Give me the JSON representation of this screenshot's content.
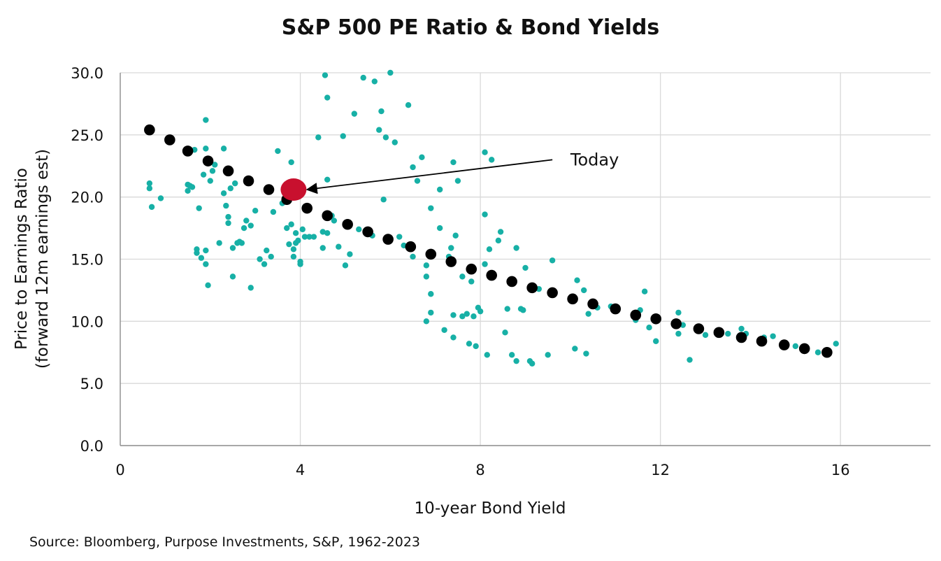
{
  "chart_data": {
    "type": "scatter",
    "title": "S&P 500 PE Ratio & Bond Yields",
    "xlabel": "10-year Bond Yield",
    "ylabel_line1": "Price to Earnings Ratio",
    "ylabel_line2": "(forward 12m earnings est)",
    "xlim": [
      0,
      18
    ],
    "ylim": [
      0,
      30
    ],
    "x_ticks": [
      0,
      4,
      8,
      12,
      16
    ],
    "y_ticks": [
      "0.0",
      "5.0",
      "10.0",
      "15.0",
      "20.0",
      "25.0",
      "30.0"
    ],
    "grid": true,
    "colors": {
      "observations": "#17b0a6",
      "trend": "#000000",
      "today": "#c8102e",
      "grid": "#d9d9d9",
      "axis": "#8c8c8c"
    },
    "series": [
      {
        "role": "observations",
        "points": [
          [
            0.65,
            20.7
          ],
          [
            0.65,
            21.1
          ],
          [
            0.7,
            19.2
          ],
          [
            0.9,
            19.9
          ],
          [
            1.5,
            21.0
          ],
          [
            1.5,
            20.5
          ],
          [
            1.55,
            20.9
          ],
          [
            1.6,
            20.8
          ],
          [
            1.65,
            23.8
          ],
          [
            1.7,
            15.8
          ],
          [
            1.7,
            15.5
          ],
          [
            1.75,
            19.1
          ],
          [
            1.8,
            15.1
          ],
          [
            1.85,
            21.8
          ],
          [
            1.9,
            26.2
          ],
          [
            1.9,
            23.9
          ],
          [
            1.9,
            14.6
          ],
          [
            1.9,
            15.7
          ],
          [
            1.95,
            12.9
          ],
          [
            2.0,
            21.3
          ],
          [
            2.05,
            22.1
          ],
          [
            2.1,
            22.6
          ],
          [
            2.2,
            16.3
          ],
          [
            2.3,
            23.9
          ],
          [
            2.3,
            20.3
          ],
          [
            2.35,
            19.3
          ],
          [
            2.4,
            18.4
          ],
          [
            2.4,
            17.9
          ],
          [
            2.45,
            20.7
          ],
          [
            2.5,
            13.6
          ],
          [
            2.5,
            15.9
          ],
          [
            2.55,
            21.1
          ],
          [
            2.6,
            16.3
          ],
          [
            2.65,
            16.4
          ],
          [
            2.7,
            16.3
          ],
          [
            2.75,
            17.5
          ],
          [
            2.8,
            18.1
          ],
          [
            2.9,
            12.7
          ],
          [
            2.9,
            17.7
          ],
          [
            3.0,
            18.9
          ],
          [
            3.1,
            15.0
          ],
          [
            3.2,
            14.6
          ],
          [
            3.25,
            15.7
          ],
          [
            3.35,
            15.2
          ],
          [
            3.4,
            18.8
          ],
          [
            3.5,
            23.7
          ],
          [
            3.6,
            19.5
          ],
          [
            3.7,
            17.5
          ],
          [
            3.75,
            16.2
          ],
          [
            3.8,
            22.8
          ],
          [
            3.8,
            17.8
          ],
          [
            3.85,
            15.2
          ],
          [
            3.85,
            15.8
          ],
          [
            3.9,
            16.3
          ],
          [
            3.9,
            17.1
          ],
          [
            3.95,
            16.5
          ],
          [
            4.0,
            14.6
          ],
          [
            4.0,
            14.8
          ],
          [
            4.05,
            17.4
          ],
          [
            4.1,
            16.8
          ],
          [
            4.1,
            19.2
          ],
          [
            4.2,
            16.8
          ],
          [
            4.3,
            16.8
          ],
          [
            4.4,
            24.8
          ],
          [
            4.5,
            15.9
          ],
          [
            4.5,
            17.2
          ],
          [
            4.55,
            29.8
          ],
          [
            4.6,
            17.1
          ],
          [
            4.6,
            21.4
          ],
          [
            4.6,
            28.0
          ],
          [
            4.7,
            18.5
          ],
          [
            4.75,
            18.1
          ],
          [
            4.85,
            16.0
          ],
          [
            4.95,
            24.9
          ],
          [
            5.0,
            14.5
          ],
          [
            5.05,
            17.8
          ],
          [
            5.1,
            15.4
          ],
          [
            5.2,
            26.7
          ],
          [
            5.3,
            17.4
          ],
          [
            5.4,
            29.6
          ],
          [
            5.5,
            17.1
          ],
          [
            5.6,
            16.9
          ],
          [
            5.65,
            29.3
          ],
          [
            5.75,
            25.4
          ],
          [
            5.8,
            26.9
          ],
          [
            5.85,
            19.8
          ],
          [
            5.9,
            24.8
          ],
          [
            6.0,
            30.0
          ],
          [
            6.1,
            24.4
          ],
          [
            6.2,
            16.8
          ],
          [
            6.3,
            16.1
          ],
          [
            6.4,
            27.4
          ],
          [
            6.5,
            22.4
          ],
          [
            6.5,
            15.2
          ],
          [
            6.6,
            21.3
          ],
          [
            6.7,
            23.2
          ],
          [
            6.8,
            10.0
          ],
          [
            6.8,
            13.6
          ],
          [
            6.8,
            14.5
          ],
          [
            6.9,
            12.2
          ],
          [
            6.9,
            10.7
          ],
          [
            6.9,
            19.1
          ],
          [
            7.1,
            17.5
          ],
          [
            7.1,
            20.6
          ],
          [
            7.2,
            9.3
          ],
          [
            7.3,
            15.2
          ],
          [
            7.3,
            14.8
          ],
          [
            7.35,
            15.9
          ],
          [
            7.4,
            8.7
          ],
          [
            7.4,
            10.5
          ],
          [
            7.4,
            22.8
          ],
          [
            7.45,
            16.9
          ],
          [
            7.5,
            21.3
          ],
          [
            7.6,
            10.4
          ],
          [
            7.6,
            13.6
          ],
          [
            7.7,
            10.6
          ],
          [
            7.75,
            8.2
          ],
          [
            7.8,
            13.2
          ],
          [
            7.85,
            10.4
          ],
          [
            7.9,
            8.0
          ],
          [
            7.95,
            11.1
          ],
          [
            8.0,
            10.8
          ],
          [
            8.1,
            23.6
          ],
          [
            8.1,
            18.6
          ],
          [
            8.1,
            14.6
          ],
          [
            8.15,
            7.3
          ],
          [
            8.2,
            15.8
          ],
          [
            8.25,
            23.0
          ],
          [
            8.4,
            16.5
          ],
          [
            8.45,
            17.2
          ],
          [
            8.55,
            9.1
          ],
          [
            8.6,
            11.0
          ],
          [
            8.7,
            7.3
          ],
          [
            8.8,
            15.9
          ],
          [
            8.8,
            6.8
          ],
          [
            8.9,
            11.0
          ],
          [
            8.95,
            10.9
          ],
          [
            9.0,
            14.3
          ],
          [
            9.1,
            6.8
          ],
          [
            9.15,
            6.6
          ],
          [
            9.3,
            12.6
          ],
          [
            9.5,
            7.3
          ],
          [
            9.6,
            14.9
          ],
          [
            10.1,
            7.8
          ],
          [
            10.15,
            13.3
          ],
          [
            10.3,
            12.5
          ],
          [
            10.35,
            7.4
          ],
          [
            10.4,
            10.6
          ],
          [
            10.6,
            11.1
          ],
          [
            10.9,
            11.2
          ],
          [
            11.45,
            10.1
          ],
          [
            11.55,
            10.9
          ],
          [
            11.65,
            12.4
          ],
          [
            11.75,
            9.5
          ],
          [
            11.9,
            8.4
          ],
          [
            12.4,
            10.7
          ],
          [
            12.4,
            9.0
          ],
          [
            12.5,
            9.7
          ],
          [
            12.65,
            6.9
          ],
          [
            13.0,
            8.9
          ],
          [
            13.5,
            9.0
          ],
          [
            13.8,
            9.4
          ],
          [
            13.9,
            9.0
          ],
          [
            14.3,
            8.7
          ],
          [
            14.5,
            8.8
          ],
          [
            15.0,
            8.0
          ],
          [
            15.5,
            7.5
          ],
          [
            15.9,
            8.2
          ]
        ]
      },
      {
        "role": "trend",
        "points": [
          [
            0.65,
            25.4
          ],
          [
            1.1,
            24.6
          ],
          [
            1.5,
            23.7
          ],
          [
            1.95,
            22.9
          ],
          [
            2.4,
            22.1
          ],
          [
            2.85,
            21.3
          ],
          [
            3.3,
            20.6
          ],
          [
            3.7,
            19.8
          ],
          [
            4.15,
            19.1
          ],
          [
            4.6,
            18.5
          ],
          [
            5.05,
            17.8
          ],
          [
            5.5,
            17.2
          ],
          [
            5.95,
            16.6
          ],
          [
            6.45,
            16.0
          ],
          [
            6.9,
            15.4
          ],
          [
            7.35,
            14.8
          ],
          [
            7.8,
            14.2
          ],
          [
            8.25,
            13.7
          ],
          [
            8.7,
            13.2
          ],
          [
            9.15,
            12.7
          ],
          [
            9.6,
            12.3
          ],
          [
            10.05,
            11.8
          ],
          [
            10.5,
            11.4
          ],
          [
            11.0,
            11.0
          ],
          [
            11.45,
            10.5
          ],
          [
            11.9,
            10.2
          ],
          [
            12.35,
            9.8
          ],
          [
            12.85,
            9.4
          ],
          [
            13.3,
            9.1
          ],
          [
            13.8,
            8.7
          ],
          [
            14.25,
            8.4
          ],
          [
            14.75,
            8.1
          ],
          [
            15.2,
            7.8
          ],
          [
            15.7,
            7.5
          ]
        ]
      },
      {
        "role": "today",
        "points": [
          [
            3.85,
            20.6
          ]
        ]
      }
    ],
    "annotations": [
      {
        "text": "Today",
        "text_at": [
          10.0,
          23.0
        ],
        "arrow_from": [
          9.6,
          23.0
        ],
        "arrow_to": [
          4.15,
          20.6
        ]
      }
    ],
    "source": "Source: Bloomberg, Purpose Investments, S&P, 1962-2023"
  }
}
